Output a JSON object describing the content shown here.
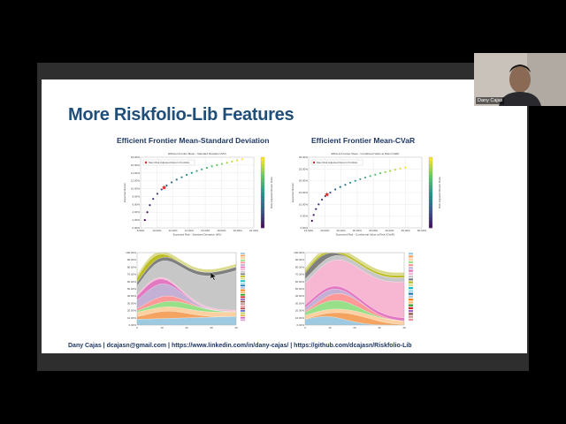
{
  "slide": {
    "title": "More Riskfolio-Lib Features",
    "left_panel_title": "Efficient Frontier Mean-Standard Deviation",
    "right_panel_title": "Efficient Frontier Mean-CVaR",
    "footer": "Dany Cajas | dcajasn@gmail.com | https://www.linkedin.com/in/dany-cajas/ | https://github.com/dcajasn/Riskfolio-Lib"
  },
  "webcam": {
    "name": "Dany Cajas"
  },
  "colors": {
    "title": "#1f4e79",
    "subtitle": "#1f3864",
    "frame": "#2e2e2e"
  },
  "chart_data": [
    {
      "type": "scatter",
      "title": "Efficient Frontier Mean - Standard Deviation (MV)",
      "xlabel": "Expected Risk - Standard Deviation (MV)",
      "ylabel": "Expected Return",
      "legend": "Max Risk Adjusted Return Portfolio",
      "colorbar_label": "Risk Adjusted Return Ratio",
      "xticks": [
        "8.50%",
        "10.00%",
        "12.00%",
        "14.00%",
        "16.00%",
        "18.00%",
        "20.00%",
        "22.00%"
      ],
      "yticks": [
        "18.00%",
        "16.00%",
        "14.00%",
        "12.00%",
        "10.00%",
        "8.00%",
        "6.00%",
        "4.00%",
        "2.00%",
        "0.00%"
      ],
      "x": [
        9.0,
        9.3,
        9.6,
        10.0,
        10.5,
        11.0,
        11.6,
        12.2,
        12.8,
        13.4,
        14.0,
        14.6,
        15.2,
        15.8,
        16.4,
        17.0,
        17.6,
        18.2,
        18.8,
        19.4,
        20.0,
        20.6
      ],
      "y": [
        2.0,
        4.0,
        5.8,
        7.4,
        8.7,
        9.8,
        10.8,
        11.6,
        12.3,
        12.9,
        13.5,
        14.0,
        14.5,
        14.9,
        15.3,
        15.7,
        16.0,
        16.3,
        16.6,
        16.9,
        17.2,
        17.5
      ],
      "highlight": {
        "x": 11.3,
        "y": 10.3
      }
    },
    {
      "type": "scatter",
      "title": "Efficient Frontier Mean - Conditional Value at Risk (CVaR)",
      "xlabel": "Expected Risk - Conditional Value at Risk (CVaR)",
      "ylabel": "Expected Return",
      "legend": "Max Risk Adjusted Return Portfolio",
      "colorbar_label": "Risk Adjusted Return Ratio",
      "xticks": [
        "16.00%",
        "20.00%",
        "25.00%",
        "30.00%",
        "35.00%",
        "40.00%",
        "45.00%",
        "50.00%"
      ],
      "yticks": [
        "30.00%",
        "25.00%",
        "20.00%",
        "15.00%",
        "10.00%",
        "5.00%",
        "0.00%"
      ],
      "x": [
        17.0,
        17.5,
        18.2,
        19.0,
        20.0,
        21.0,
        22.5,
        24.0,
        25.5,
        27.0,
        28.5,
        30.0,
        31.5,
        33.0,
        34.5,
        36.0,
        37.5,
        39.0,
        40.5,
        42.0,
        43.5,
        45.0
      ],
      "y": [
        3.0,
        5.5,
        8.0,
        10.0,
        12.0,
        13.5,
        15.0,
        16.3,
        17.4,
        18.3,
        19.2,
        20.0,
        20.7,
        21.4,
        22.0,
        22.6,
        23.2,
        23.7,
        24.2,
        24.7,
        25.2,
        25.6
      ],
      "highlight": {
        "x": 21.5,
        "y": 14.2
      }
    },
    {
      "type": "area",
      "title": "",
      "yticks": [
        "100.00%",
        "90.00%",
        "80.00%",
        "70.00%",
        "60.00%",
        "50.00%",
        "40.00%",
        "30.00%",
        "20.00%",
        "10.00%",
        "0.00%"
      ],
      "xticks": [
        "0",
        "10",
        "20",
        "30",
        "40"
      ],
      "legend_count": 30
    },
    {
      "type": "area",
      "title": "",
      "yticks": [
        "100.00%",
        "90.00%",
        "80.00%",
        "70.00%",
        "60.00%",
        "50.00%",
        "40.00%",
        "30.00%",
        "20.00%",
        "10.00%",
        "0.00%"
      ],
      "xticks": [
        "0",
        "10",
        "20",
        "30",
        "40"
      ],
      "legend_count": 24
    }
  ]
}
